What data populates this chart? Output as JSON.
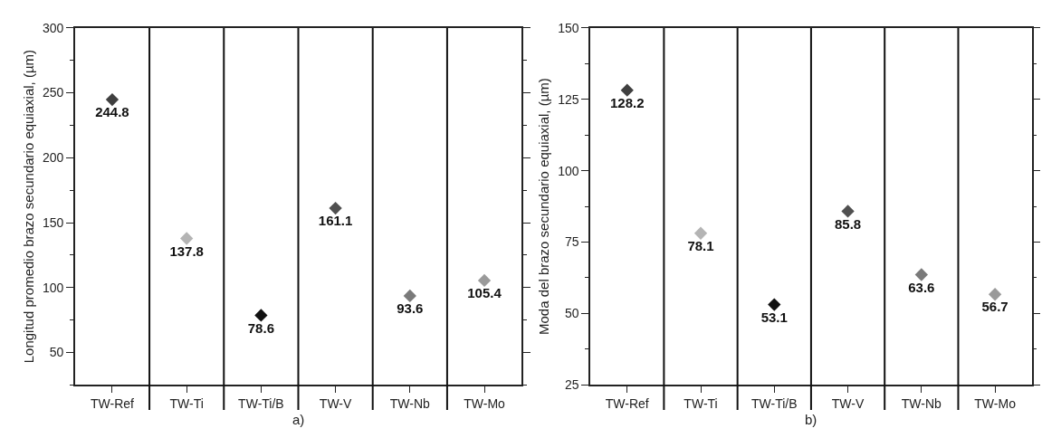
{
  "chart_data": [
    {
      "type": "scatter",
      "categories": [
        "TW-Ref",
        "TW-Ti",
        "TW-Ti/B",
        "TW-V",
        "TW-Nb",
        "TW-Mo"
      ],
      "values": [
        244.8,
        137.8,
        78.6,
        161.1,
        93.6,
        105.4
      ],
      "colors": [
        "#404040",
        "#b4b4b4",
        "#111111",
        "#505050",
        "#7a7a7a",
        "#9a9a9a"
      ],
      "ylabel": "Longitud promedio brazo secundario equiaxial, (µm)",
      "annotations": [
        "a)"
      ],
      "ylim": [
        25,
        300
      ],
      "yticks": [
        {
          "value": 25,
          "label": null
        },
        50,
        {
          "value": 75,
          "label": null
        },
        100,
        {
          "value": 125,
          "label": null
        },
        150,
        {
          "value": 175,
          "label": null
        },
        200,
        {
          "value": 225,
          "label": null
        },
        250,
        {
          "value": 275,
          "label": null
        },
        300
      ],
      "marker": "diamond",
      "data_labels": true,
      "grid": "x"
    },
    {
      "type": "scatter",
      "categories": [
        "TW-Ref",
        "TW-Ti",
        "TW-Ti/B",
        "TW-V",
        "TW-Nb",
        "TW-Mo"
      ],
      "values": [
        128.2,
        78.1,
        53.1,
        85.8,
        63.6,
        56.7
      ],
      "colors": [
        "#404040",
        "#b4b4b4",
        "#111111",
        "#505050",
        "#7a7a7a",
        "#9a9a9a"
      ],
      "ylabel": "Moda del brazo secundario equiaxial, (µm)",
      "annotations": [
        "b)"
      ],
      "ylim": [
        25,
        150
      ],
      "yticks": [
        25,
        {
          "value": 37.5,
          "label": null
        },
        50,
        {
          "value": 62.5,
          "label": null
        },
        75,
        {
          "value": 87.5,
          "label": null
        },
        100,
        {
          "value": 112.5,
          "label": null
        },
        125,
        {
          "value": 137.5,
          "label": null
        },
        150
      ],
      "marker": "diamond",
      "data_labels": true,
      "grid": "x"
    }
  ]
}
